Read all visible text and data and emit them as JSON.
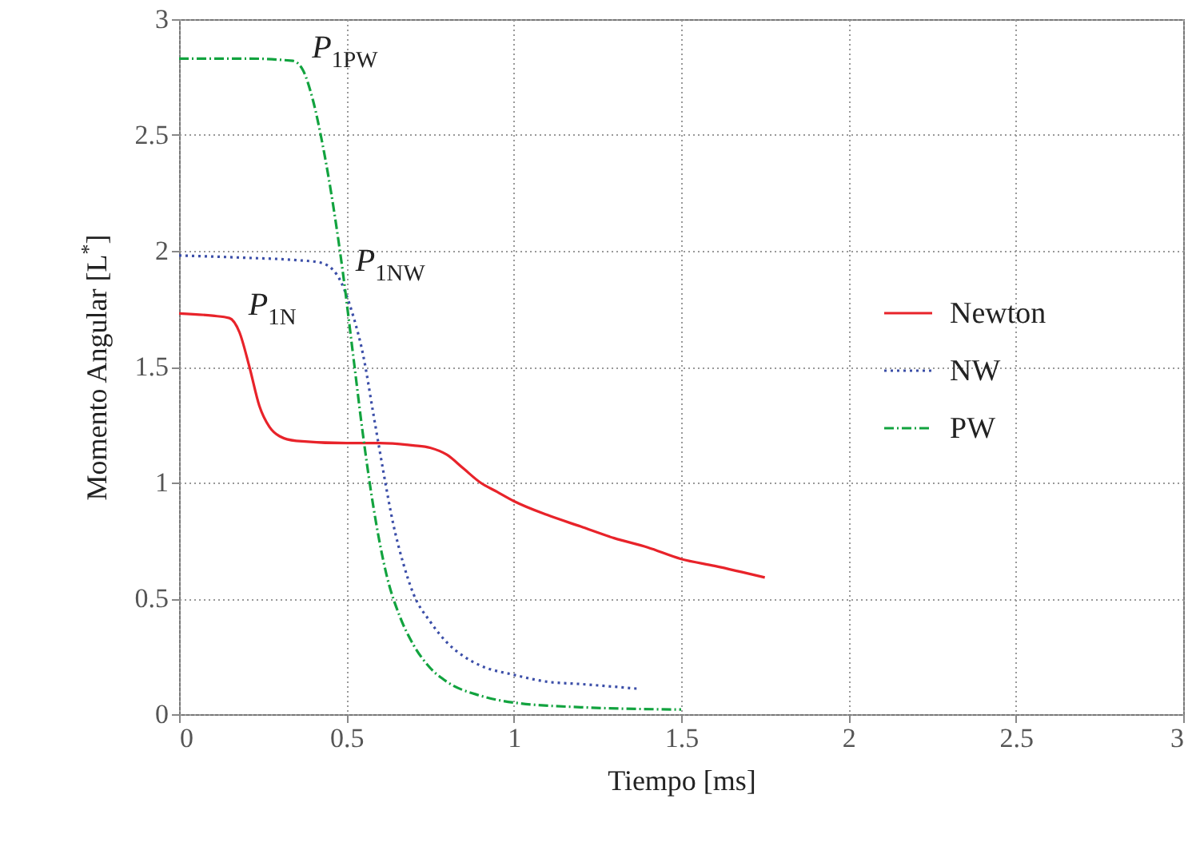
{
  "chart_data": {
    "type": "line",
    "xlabel": "Tiempo [ms]",
    "ylabel": "Momento Angular [L$^{*}$]",
    "xlim": [
      0,
      3
    ],
    "ylim": [
      0,
      3
    ],
    "xticks": [
      0,
      0.5,
      1,
      1.5,
      2,
      2.5,
      3
    ],
    "yticks": [
      0,
      0.5,
      1,
      1.5,
      2,
      2.5,
      3
    ],
    "grid": true,
    "legend": "right",
    "series": [
      {
        "name": "Newton",
        "color": "#e8232a",
        "line_style": "solid",
        "x": [
          0,
          0.1,
          0.15,
          0.18,
          0.21,
          0.24,
          0.27,
          0.3,
          0.35,
          0.5,
          0.6,
          0.7,
          0.75,
          0.8,
          0.85,
          0.9,
          0.95,
          1.0,
          1.1,
          1.2,
          1.3,
          1.4,
          1.5,
          1.6,
          1.75
        ],
        "values": [
          1.73,
          1.72,
          1.71,
          1.65,
          1.5,
          1.33,
          1.24,
          1.2,
          1.18,
          1.17,
          1.17,
          1.16,
          1.15,
          1.12,
          1.06,
          1.0,
          0.96,
          0.92,
          0.86,
          0.81,
          0.76,
          0.72,
          0.67,
          0.64,
          0.59
        ]
      },
      {
        "name": "NW",
        "color": "#3b4ea8",
        "line_style": "dotted",
        "x": [
          0,
          0.2,
          0.35,
          0.42,
          0.47,
          0.52,
          0.55,
          0.58,
          0.61,
          0.64,
          0.67,
          0.7,
          0.75,
          0.8,
          0.85,
          0.9,
          1.0,
          1.1,
          1.2,
          1.37
        ],
        "values": [
          1.98,
          1.97,
          1.96,
          1.95,
          1.9,
          1.72,
          1.55,
          1.3,
          1.05,
          0.82,
          0.65,
          0.52,
          0.4,
          0.31,
          0.25,
          0.21,
          0.17,
          0.14,
          0.13,
          0.11
        ]
      },
      {
        "name": "PW",
        "color": "#12a33f",
        "line_style": "dashed",
        "x": [
          0,
          0.2,
          0.34,
          0.37,
          0.4,
          0.43,
          0.46,
          0.49,
          0.52,
          0.55,
          0.58,
          0.62,
          0.66,
          0.7,
          0.75,
          0.8,
          0.9,
          1.0,
          1.2,
          1.5
        ],
        "values": [
          2.83,
          2.83,
          2.82,
          2.78,
          2.65,
          2.45,
          2.2,
          1.9,
          1.55,
          1.2,
          0.9,
          0.6,
          0.42,
          0.3,
          0.2,
          0.14,
          0.08,
          0.05,
          0.03,
          0.02
        ]
      }
    ],
    "annotations": [
      {
        "text": "P$_{1PW}$",
        "x": 0.34,
        "y": 2.82
      },
      {
        "text": "P$_{1NW}$",
        "x": 0.47,
        "y": 1.9
      },
      {
        "text": "P$_{1N}$",
        "x": 0.15,
        "y": 1.71
      }
    ]
  }
}
